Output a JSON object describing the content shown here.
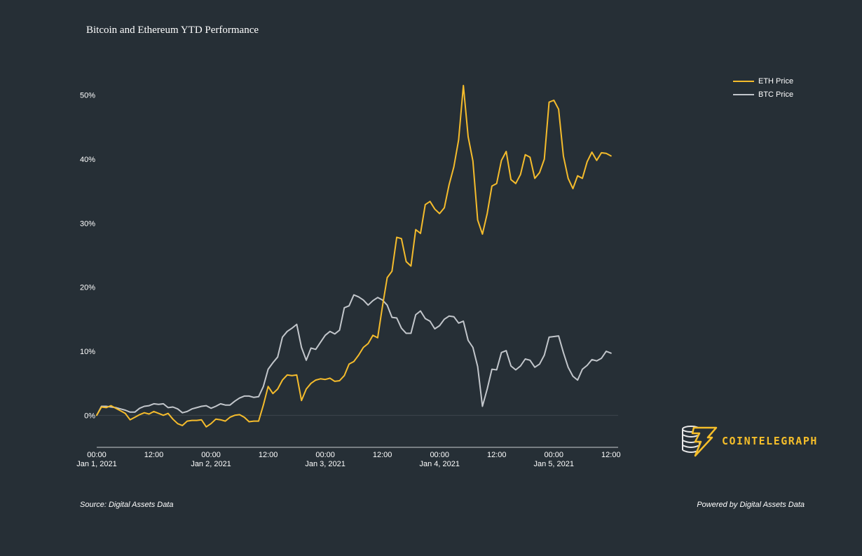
{
  "colors": {
    "background": "#262f36",
    "eth": "#f5bc2c",
    "btc": "#c2c6cb",
    "zeroline": "#3d464e",
    "axis": "#c8ccd0",
    "brand": "#f5be2a"
  },
  "footer": {
    "source": "Source: Digital Assets Data",
    "powered": "Powered by Digital Assets Data"
  },
  "logo": {
    "text": "COINTELEGRAPH",
    "icon": "coin-stack-lightning-icon"
  },
  "chart_data": {
    "type": "line",
    "title": "Bitcoin and Ethereum YTD Performance",
    "xlabel": "",
    "ylabel": "",
    "xlim": [
      "2021-01-01 00:00",
      "2021-01-05 13:30"
    ],
    "ylim": [
      -5,
      55
    ],
    "grid": false,
    "legend_position": "top-right",
    "x_ticks": [
      {
        "at": "2021-01-01 00:00",
        "line1": "00:00",
        "line2": "Jan 1, 2021"
      },
      {
        "at": "2021-01-01 12:00",
        "line1": "12:00",
        "line2": ""
      },
      {
        "at": "2021-01-02 00:00",
        "line1": "00:00",
        "line2": "Jan 2, 2021"
      },
      {
        "at": "2021-01-02 12:00",
        "line1": "12:00",
        "line2": ""
      },
      {
        "at": "2021-01-03 00:00",
        "line1": "00:00",
        "line2": "Jan 3, 2021"
      },
      {
        "at": "2021-01-03 12:00",
        "line1": "12:00",
        "line2": ""
      },
      {
        "at": "2021-01-04 00:00",
        "line1": "00:00",
        "line2": "Jan 4, 2021"
      },
      {
        "at": "2021-01-04 12:00",
        "line1": "12:00",
        "line2": ""
      },
      {
        "at": "2021-01-05 00:00",
        "line1": "00:00",
        "line2": "Jan 5, 2021"
      },
      {
        "at": "2021-01-05 12:00",
        "line1": "12:00",
        "line2": ""
      }
    ],
    "y_ticks": [
      {
        "value": 0,
        "label": "0%"
      },
      {
        "value": 10,
        "label": "10%"
      },
      {
        "value": 20,
        "label": "20%"
      },
      {
        "value": 30,
        "label": "30%"
      },
      {
        "value": 40,
        "label": "40%"
      },
      {
        "value": 50,
        "label": "50%"
      }
    ],
    "series": [
      {
        "name": "ETH Price",
        "color": "#f5bc2c",
        "points": [
          [
            "2021-01-01 00:00",
            0
          ],
          [
            "2021-01-01 01:00",
            1.3
          ],
          [
            "2021-01-01 02:00",
            1.2
          ],
          [
            "2021-01-01 03:00",
            1.5
          ],
          [
            "2021-01-01 04:00",
            1.1
          ],
          [
            "2021-01-01 05:00",
            0.7
          ],
          [
            "2021-01-01 06:00",
            0.3
          ],
          [
            "2021-01-01 07:00",
            -0.7
          ],
          [
            "2021-01-01 08:00",
            -0.3
          ],
          [
            "2021-01-01 09:00",
            0.1
          ],
          [
            "2021-01-01 10:00",
            0.4
          ],
          [
            "2021-01-01 11:00",
            0.2
          ],
          [
            "2021-01-01 12:00",
            0.6
          ],
          [
            "2021-01-01 13:00",
            0.3
          ],
          [
            "2021-01-01 14:00",
            0
          ],
          [
            "2021-01-01 15:00",
            0.3
          ],
          [
            "2021-01-01 16:00",
            -0.6
          ],
          [
            "2021-01-01 17:00",
            -1.3
          ],
          [
            "2021-01-01 18:00",
            -1.6
          ],
          [
            "2021-01-01 19:00",
            -0.9
          ],
          [
            "2021-01-01 20:00",
            -0.8
          ],
          [
            "2021-01-01 21:00",
            -0.8
          ],
          [
            "2021-01-01 22:00",
            -0.7
          ],
          [
            "2021-01-01 23:00",
            -1.8
          ],
          [
            "2021-01-02 00:00",
            -1.3
          ],
          [
            "2021-01-02 01:00",
            -0.6
          ],
          [
            "2021-01-02 02:00",
            -0.7
          ],
          [
            "2021-01-02 03:00",
            -0.9
          ],
          [
            "2021-01-02 04:00",
            -0.3
          ],
          [
            "2021-01-02 05:00",
            0
          ],
          [
            "2021-01-02 06:00",
            0.1
          ],
          [
            "2021-01-02 07:00",
            -0.3
          ],
          [
            "2021-01-02 08:00",
            -1
          ],
          [
            "2021-01-02 09:00",
            -0.9
          ],
          [
            "2021-01-02 10:00",
            -0.9
          ],
          [
            "2021-01-02 11:00",
            1.6
          ],
          [
            "2021-01-02 12:00",
            4.5
          ],
          [
            "2021-01-02 13:00",
            3.4
          ],
          [
            "2021-01-02 14:00",
            4.1
          ],
          [
            "2021-01-02 15:00",
            5.5
          ],
          [
            "2021-01-02 16:00",
            6.3
          ],
          [
            "2021-01-02 17:00",
            6.2
          ],
          [
            "2021-01-02 18:00",
            6.3
          ],
          [
            "2021-01-02 19:00",
            2.3
          ],
          [
            "2021-01-02 20:00",
            4.1
          ],
          [
            "2021-01-02 21:00",
            5
          ],
          [
            "2021-01-02 22:00",
            5.5
          ],
          [
            "2021-01-02 23:00",
            5.7
          ],
          [
            "2021-01-03 00:00",
            5.6
          ],
          [
            "2021-01-03 01:00",
            5.8
          ],
          [
            "2021-01-03 02:00",
            5.3
          ],
          [
            "2021-01-03 03:00",
            5.4
          ],
          [
            "2021-01-03 04:00",
            6.2
          ],
          [
            "2021-01-03 05:00",
            8
          ],
          [
            "2021-01-03 06:00",
            8.4
          ],
          [
            "2021-01-03 07:00",
            9.4
          ],
          [
            "2021-01-03 08:00",
            10.6
          ],
          [
            "2021-01-03 09:00",
            11.2
          ],
          [
            "2021-01-03 10:00",
            12.5
          ],
          [
            "2021-01-03 11:00",
            12.1
          ],
          [
            "2021-01-03 12:00",
            17
          ],
          [
            "2021-01-03 13:00",
            21.5
          ],
          [
            "2021-01-03 14:00",
            22.5
          ],
          [
            "2021-01-03 15:00",
            27.8
          ],
          [
            "2021-01-03 16:00",
            27.6
          ],
          [
            "2021-01-03 17:00",
            24
          ],
          [
            "2021-01-03 18:00",
            23.3
          ],
          [
            "2021-01-03 19:00",
            29
          ],
          [
            "2021-01-03 20:00",
            28.4
          ],
          [
            "2021-01-03 21:00",
            32.9
          ],
          [
            "2021-01-03 22:00",
            33.4
          ],
          [
            "2021-01-03 23:00",
            32.2
          ],
          [
            "2021-01-04 00:00",
            31.5
          ],
          [
            "2021-01-04 01:00",
            32.4
          ],
          [
            "2021-01-04 02:00",
            36
          ],
          [
            "2021-01-04 03:00",
            38.8
          ],
          [
            "2021-01-04 04:00",
            43
          ],
          [
            "2021-01-04 05:00",
            51.5
          ],
          [
            "2021-01-04 06:00",
            43.5
          ],
          [
            "2021-01-04 07:00",
            39.7
          ],
          [
            "2021-01-04 08:00",
            30.5
          ],
          [
            "2021-01-04 09:00",
            28.3
          ],
          [
            "2021-01-04 10:00",
            31.5
          ],
          [
            "2021-01-04 11:00",
            35.8
          ],
          [
            "2021-01-04 12:00",
            36.2
          ],
          [
            "2021-01-04 13:00",
            39.8
          ],
          [
            "2021-01-04 14:00",
            41.2
          ],
          [
            "2021-01-04 15:00",
            36.8
          ],
          [
            "2021-01-04 16:00",
            36.2
          ],
          [
            "2021-01-04 17:00",
            37.6
          ],
          [
            "2021-01-04 18:00",
            40.7
          ],
          [
            "2021-01-04 19:00",
            40.3
          ],
          [
            "2021-01-04 20:00",
            37
          ],
          [
            "2021-01-04 21:00",
            37.9
          ],
          [
            "2021-01-04 22:00",
            40
          ],
          [
            "2021-01-04 23:00",
            48.9
          ],
          [
            "2021-01-05 00:00",
            49.2
          ],
          [
            "2021-01-05 01:00",
            47.8
          ],
          [
            "2021-01-05 02:00",
            40.5
          ],
          [
            "2021-01-05 03:00",
            37
          ],
          [
            "2021-01-05 04:00",
            35.4
          ],
          [
            "2021-01-05 05:00",
            37.4
          ],
          [
            "2021-01-05 06:00",
            37
          ],
          [
            "2021-01-05 07:00",
            39.6
          ],
          [
            "2021-01-05 08:00",
            41.1
          ],
          [
            "2021-01-05 09:00",
            39.8
          ],
          [
            "2021-01-05 10:00",
            41
          ],
          [
            "2021-01-05 11:00",
            40.9
          ],
          [
            "2021-01-05 12:00",
            40.5
          ]
        ]
      },
      {
        "name": "BTC Price",
        "color": "#c2c6cb",
        "points": [
          [
            "2021-01-01 00:00",
            0
          ],
          [
            "2021-01-01 01:00",
            1.4
          ],
          [
            "2021-01-01 02:00",
            1.4
          ],
          [
            "2021-01-01 03:00",
            1.3
          ],
          [
            "2021-01-01 04:00",
            1.2
          ],
          [
            "2021-01-01 05:00",
            1
          ],
          [
            "2021-01-01 06:00",
            0.8
          ],
          [
            "2021-01-01 07:00",
            0.5
          ],
          [
            "2021-01-01 08:00",
            0.5
          ],
          [
            "2021-01-01 09:00",
            1.1
          ],
          [
            "2021-01-01 10:00",
            1.4
          ],
          [
            "2021-01-01 11:00",
            1.5
          ],
          [
            "2021-01-01 12:00",
            1.8
          ],
          [
            "2021-01-01 13:00",
            1.7
          ],
          [
            "2021-01-01 14:00",
            1.8
          ],
          [
            "2021-01-01 15:00",
            1.2
          ],
          [
            "2021-01-01 16:00",
            1.3
          ],
          [
            "2021-01-01 17:00",
            1
          ],
          [
            "2021-01-01 18:00",
            0.4
          ],
          [
            "2021-01-01 19:00",
            0.6
          ],
          [
            "2021-01-01 20:00",
            1
          ],
          [
            "2021-01-01 21:00",
            1.2
          ],
          [
            "2021-01-01 22:00",
            1.4
          ],
          [
            "2021-01-01 23:00",
            1.5
          ],
          [
            "2021-01-02 00:00",
            1.1
          ],
          [
            "2021-01-02 01:00",
            1.4
          ],
          [
            "2021-01-02 02:00",
            1.8
          ],
          [
            "2021-01-02 03:00",
            1.6
          ],
          [
            "2021-01-02 04:00",
            1.6
          ],
          [
            "2021-01-02 05:00",
            2.2
          ],
          [
            "2021-01-02 06:00",
            2.7
          ],
          [
            "2021-01-02 07:00",
            3
          ],
          [
            "2021-01-02 08:00",
            3
          ],
          [
            "2021-01-02 09:00",
            2.8
          ],
          [
            "2021-01-02 10:00",
            2.9
          ],
          [
            "2021-01-02 11:00",
            4.5
          ],
          [
            "2021-01-02 12:00",
            7.2
          ],
          [
            "2021-01-02 13:00",
            8.2
          ],
          [
            "2021-01-02 14:00",
            9.1
          ],
          [
            "2021-01-02 15:00",
            12.2
          ],
          [
            "2021-01-02 16:00",
            13.1
          ],
          [
            "2021-01-02 17:00",
            13.6
          ],
          [
            "2021-01-02 18:00",
            14.2
          ],
          [
            "2021-01-02 19:00",
            10.6
          ],
          [
            "2021-01-02 20:00",
            8.6
          ],
          [
            "2021-01-02 21:00",
            10.5
          ],
          [
            "2021-01-02 22:00",
            10.3
          ],
          [
            "2021-01-02 23:00",
            11.4
          ],
          [
            "2021-01-03 00:00",
            12.5
          ],
          [
            "2021-01-03 01:00",
            13.1
          ],
          [
            "2021-01-03 02:00",
            12.7
          ],
          [
            "2021-01-03 03:00",
            13.3
          ],
          [
            "2021-01-03 04:00",
            16.8
          ],
          [
            "2021-01-03 05:00",
            17.1
          ],
          [
            "2021-01-03 06:00",
            18.8
          ],
          [
            "2021-01-03 07:00",
            18.5
          ],
          [
            "2021-01-03 08:00",
            18
          ],
          [
            "2021-01-03 09:00",
            17.2
          ],
          [
            "2021-01-03 10:00",
            17.9
          ],
          [
            "2021-01-03 11:00",
            18.4
          ],
          [
            "2021-01-03 12:00",
            18
          ],
          [
            "2021-01-03 13:00",
            17.2
          ],
          [
            "2021-01-03 14:00",
            15.3
          ],
          [
            "2021-01-03 15:00",
            15.2
          ],
          [
            "2021-01-03 16:00",
            13.6
          ],
          [
            "2021-01-03 17:00",
            12.8
          ],
          [
            "2021-01-03 18:00",
            12.8
          ],
          [
            "2021-01-03 19:00",
            15.7
          ],
          [
            "2021-01-03 20:00",
            16.3
          ],
          [
            "2021-01-03 21:00",
            15.1
          ],
          [
            "2021-01-03 22:00",
            14.7
          ],
          [
            "2021-01-03 23:00",
            13.5
          ],
          [
            "2021-01-04 00:00",
            14
          ],
          [
            "2021-01-04 01:00",
            15
          ],
          [
            "2021-01-04 02:00",
            15.5
          ],
          [
            "2021-01-04 03:00",
            15.4
          ],
          [
            "2021-01-04 04:00",
            14.4
          ],
          [
            "2021-01-04 05:00",
            14.7
          ],
          [
            "2021-01-04 06:00",
            11.7
          ],
          [
            "2021-01-04 07:00",
            10.6
          ],
          [
            "2021-01-04 08:00",
            7.6
          ],
          [
            "2021-01-04 09:00",
            1.4
          ],
          [
            "2021-01-04 10:00",
            4.1
          ],
          [
            "2021-01-04 11:00",
            7.2
          ],
          [
            "2021-01-04 12:00",
            7.1
          ],
          [
            "2021-01-04 13:00",
            9.8
          ],
          [
            "2021-01-04 14:00",
            10.1
          ],
          [
            "2021-01-04 15:00",
            7.7
          ],
          [
            "2021-01-04 16:00",
            7.1
          ],
          [
            "2021-01-04 17:00",
            7.7
          ],
          [
            "2021-01-04 18:00",
            8.8
          ],
          [
            "2021-01-04 19:00",
            8.6
          ],
          [
            "2021-01-04 20:00",
            7.5
          ],
          [
            "2021-01-04 21:00",
            8
          ],
          [
            "2021-01-04 22:00",
            9.4
          ],
          [
            "2021-01-04 23:00",
            12.2
          ],
          [
            "2021-01-05 00:00",
            12.3
          ],
          [
            "2021-01-05 01:00",
            12.4
          ],
          [
            "2021-01-05 02:00",
            9.8
          ],
          [
            "2021-01-05 03:00",
            7.5
          ],
          [
            "2021-01-05 04:00",
            6.1
          ],
          [
            "2021-01-05 05:00",
            5.5
          ],
          [
            "2021-01-05 06:00",
            7.2
          ],
          [
            "2021-01-05 07:00",
            7.8
          ],
          [
            "2021-01-05 08:00",
            8.7
          ],
          [
            "2021-01-05 09:00",
            8.5
          ],
          [
            "2021-01-05 10:00",
            8.9
          ],
          [
            "2021-01-05 11:00",
            10
          ],
          [
            "2021-01-05 12:00",
            9.7
          ]
        ]
      }
    ]
  }
}
